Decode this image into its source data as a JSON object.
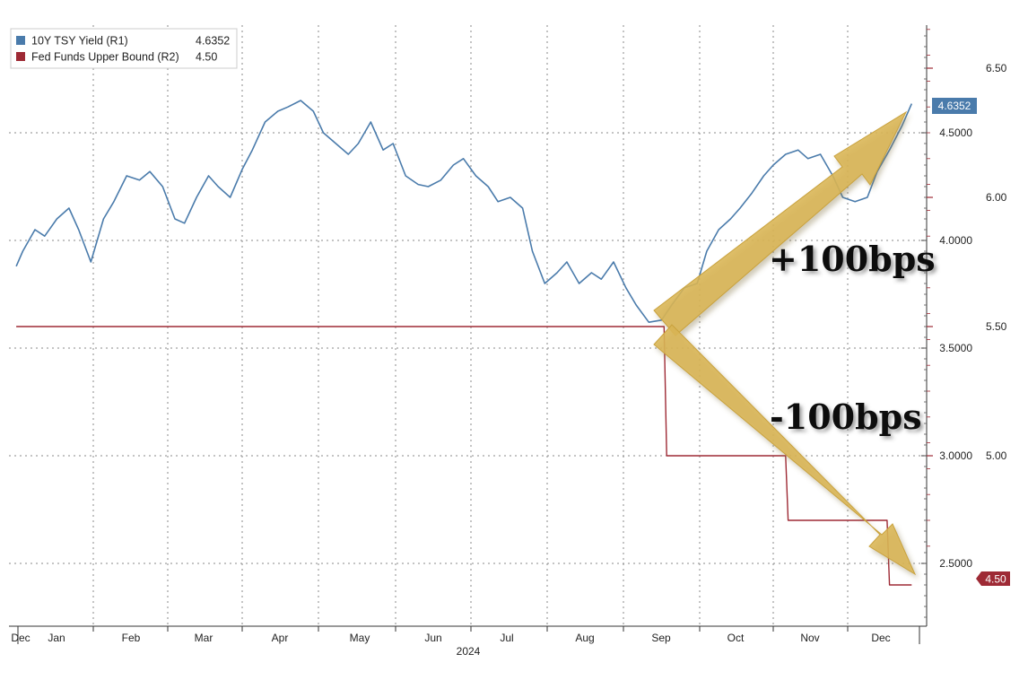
{
  "chart_data": {
    "type": "line",
    "x_axis": {
      "labels": [
        "Dec",
        "Jan",
        "Feb",
        "Mar",
        "Apr",
        "May",
        "Jun",
        "Jul",
        "Aug",
        "Sep",
        "Oct",
        "Nov",
        "Dec"
      ],
      "year_label": "2024"
    },
    "y_axis_r1": {
      "range": [
        2.25,
        4.95
      ],
      "ticks": [
        "2.5000",
        "3.0000",
        "3.5000",
        "4.0000",
        "4.5000"
      ],
      "tick_values": [
        2.5,
        3.0,
        3.5,
        4.0,
        4.5
      ]
    },
    "y_axis_r2": {
      "range": [
        4.62,
        6.82
      ],
      "ticks": [
        "5.00",
        "5.50",
        "6.00",
        "6.50"
      ],
      "tick_values": [
        5.0,
        5.5,
        6.0,
        6.5
      ]
    },
    "grid": true,
    "legend_position": "top-left",
    "series": [
      {
        "name": "10Y TSY Yield (R1)",
        "legend_value": "4.6352",
        "last_label": "4.6352",
        "color": "#4a7bab",
        "axis": "R1",
        "x": [
          "Dec 29",
          "Jan 3",
          "Jan 8",
          "Jan 12",
          "Jan 17",
          "Jan 22",
          "Jan 26",
          "Jan 31",
          "Feb 5",
          "Feb 9",
          "Feb 14",
          "Feb 19",
          "Feb 23",
          "Feb 28",
          "Mar 4",
          "Mar 8",
          "Mar 13",
          "Mar 18",
          "Mar 22",
          "Mar 27",
          "Apr 1",
          "Apr 5",
          "Apr 10",
          "Apr 15",
          "Apr 19",
          "Apr 24",
          "Apr 29",
          "May 3",
          "May 8",
          "May 13",
          "May 17",
          "May 22",
          "May 27",
          "May 31",
          "Jun 5",
          "Jun 10",
          "Jun 14",
          "Jun 19",
          "Jun 24",
          "Jun 28",
          "Jul 3",
          "Jul 8",
          "Jul 12",
          "Jul 17",
          "Jul 22",
          "Jul 26",
          "Jul 31",
          "Aug 5",
          "Aug 9",
          "Aug 14",
          "Aug 19",
          "Aug 23",
          "Aug 28",
          "Sep 2",
          "Sep 6",
          "Sep 11",
          "Sep 16",
          "Sep 20",
          "Sep 25",
          "Sep 30",
          "Oct 4",
          "Oct 9",
          "Oct 14",
          "Oct 18",
          "Oct 23",
          "Oct 28",
          "Nov 1",
          "Nov 6",
          "Nov 11",
          "Nov 15",
          "Nov 20",
          "Nov 25",
          "Nov 29",
          "Dec 4",
          "Dec 9",
          "Dec 13",
          "Dec 18",
          "Dec 23",
          "Dec 27"
        ],
        "y": [
          3.88,
          3.95,
          4.05,
          4.02,
          4.1,
          4.15,
          4.05,
          3.9,
          4.1,
          4.18,
          4.3,
          4.28,
          4.32,
          4.25,
          4.1,
          4.08,
          4.2,
          4.3,
          4.25,
          4.2,
          4.33,
          4.42,
          4.55,
          4.6,
          4.62,
          4.65,
          4.6,
          4.5,
          4.45,
          4.4,
          4.45,
          4.55,
          4.42,
          4.45,
          4.3,
          4.26,
          4.25,
          4.28,
          4.35,
          4.38,
          4.3,
          4.25,
          4.18,
          4.2,
          4.15,
          3.95,
          3.8,
          3.85,
          3.9,
          3.8,
          3.85,
          3.82,
          3.9,
          3.78,
          3.7,
          3.62,
          3.63,
          3.7,
          3.78,
          3.8,
          3.95,
          4.05,
          4.1,
          4.15,
          4.22,
          4.3,
          4.35,
          4.4,
          4.42,
          4.38,
          4.4,
          4.3,
          4.2,
          4.18,
          4.2,
          4.32,
          4.42,
          4.53,
          4.6352
        ]
      },
      {
        "name": "Fed Funds Upper Bound (R2)",
        "legend_value": "4.50",
        "last_label": "4.50",
        "color": "#9e2a35",
        "axis": "R2",
        "x": [
          "Dec 29",
          "Sep 17",
          "Sep 18",
          "Nov 6",
          "Nov 7",
          "Dec 17",
          "Dec 18",
          "Dec 27"
        ],
        "y": [
          5.5,
          5.5,
          5.0,
          5.0,
          4.75,
          4.75,
          4.5,
          4.5
        ]
      }
    ],
    "annotations": [
      "+100bps",
      "-100bps"
    ]
  }
}
